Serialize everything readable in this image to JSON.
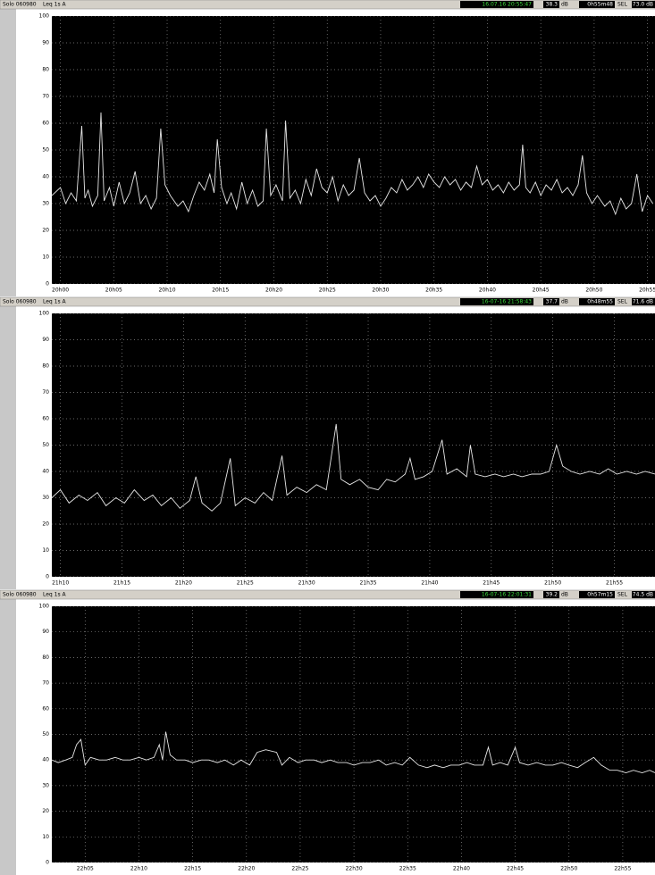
{
  "chart_data": [
    {
      "type": "line",
      "title": "Solo 060980",
      "subtitle": "Leq 1s A",
      "readout": {
        "time": "16.07.16 20:55:47",
        "level": "38.3",
        "unit": "dB",
        "duration": "0h55m48",
        "sel_label": "SEL",
        "sel": "73.0 dB"
      },
      "color": "#e6e6e6",
      "grid": true,
      "xlim": [
        -0.8,
        55.7
      ],
      "ylim": [
        0,
        100
      ],
      "yticks": [
        0,
        10,
        20,
        30,
        40,
        50,
        60,
        70,
        80,
        90,
        100
      ],
      "xticks": [
        {
          "value": 0,
          "label": "20h00"
        },
        {
          "value": 5,
          "label": "20h05"
        },
        {
          "value": 10,
          "label": "20h10"
        },
        {
          "value": 15,
          "label": "20h15"
        },
        {
          "value": 20,
          "label": "20h20"
        },
        {
          "value": 25,
          "label": "20h25"
        },
        {
          "value": 30,
          "label": "20h30"
        },
        {
          "value": 35,
          "label": "20h35"
        },
        {
          "value": 40,
          "label": "20h40"
        },
        {
          "value": 45,
          "label": "20h45"
        },
        {
          "value": 50,
          "label": "20h50"
        },
        {
          "value": 55,
          "label": "20h55"
        }
      ],
      "x": [
        -0.8,
        0,
        0.5,
        1,
        1.5,
        2,
        2.3,
        2.6,
        3,
        3.5,
        3.8,
        4.1,
        4.6,
        5,
        5.5,
        6,
        6.5,
        7,
        7.5,
        8,
        8.5,
        9,
        9.4,
        9.8,
        10.3,
        11,
        11.5,
        12,
        12.5,
        13,
        13.5,
        14,
        14.4,
        14.7,
        15.1,
        15.6,
        16,
        16.5,
        17,
        17.5,
        18,
        18.5,
        19,
        19.3,
        19.7,
        20.2,
        20.8,
        21.1,
        21.5,
        22,
        22.5,
        23,
        23.5,
        24,
        24.5,
        25,
        25.5,
        26,
        26.5,
        27,
        27.5,
        28,
        28.5,
        29,
        29.5,
        30,
        30.5,
        31,
        31.5,
        32,
        32.5,
        33,
        33.5,
        34,
        34.5,
        35,
        35.5,
        36,
        36.5,
        37,
        37.5,
        38,
        38.5,
        39,
        39.5,
        40,
        40.5,
        41,
        41.5,
        42,
        42.5,
        43,
        43.3,
        43.6,
        44,
        44.5,
        45,
        45.5,
        46,
        46.5,
        47,
        47.5,
        48,
        48.5,
        48.9,
        49.3,
        49.8,
        50.3,
        51,
        51.5,
        52,
        52.5,
        53,
        53.5,
        54,
        54.5,
        55,
        55.5
      ],
      "values": [
        33,
        36,
        30,
        34,
        31,
        59,
        32,
        35,
        29,
        33,
        64,
        31,
        36,
        29,
        38,
        30,
        34,
        42,
        30,
        33,
        28,
        32,
        58,
        37,
        33,
        29,
        31,
        27,
        33,
        38,
        35,
        41,
        34,
        54,
        36,
        30,
        34,
        28,
        38,
        30,
        35,
        29,
        31,
        58,
        33,
        37,
        31,
        61,
        32,
        35,
        30,
        39,
        33,
        43,
        36,
        34,
        40,
        31,
        37,
        33,
        35,
        47,
        34,
        31,
        33,
        29,
        32,
        36,
        34,
        39,
        35,
        37,
        40,
        36,
        41,
        38,
        36,
        40,
        37,
        39,
        35,
        38,
        36,
        44,
        37,
        39,
        35,
        37,
        34,
        38,
        35,
        37,
        52,
        36,
        34,
        38,
        33,
        37,
        35,
        39,
        34,
        36,
        33,
        37,
        48,
        34,
        30,
        33,
        29,
        31,
        26,
        32,
        28,
        30,
        41,
        27,
        33,
        30
      ]
    },
    {
      "type": "line",
      "title": "Solo 060980",
      "subtitle": "Leq 1s A",
      "readout": {
        "time": "16-07-16 21:58:43",
        "level": "37.7",
        "unit": "dB",
        "duration": "0h48m55",
        "sel_label": "SEL",
        "sel": "71.6 dB"
      },
      "color": "#e6e6e6",
      "grid": true,
      "xlim": [
        -0.7,
        48.3
      ],
      "ylim": [
        0,
        100
      ],
      "yticks": [
        0,
        10,
        20,
        30,
        40,
        50,
        60,
        70,
        80,
        90,
        100
      ],
      "xticks": [
        {
          "value": 0,
          "label": "21h10"
        },
        {
          "value": 5,
          "label": "21h15"
        },
        {
          "value": 10,
          "label": "21h20"
        },
        {
          "value": 15,
          "label": "21h25"
        },
        {
          "value": 20,
          "label": "21h30"
        },
        {
          "value": 25,
          "label": "21h35"
        },
        {
          "value": 30,
          "label": "21h40"
        },
        {
          "value": 35,
          "label": "21h45"
        },
        {
          "value": 40,
          "label": "21h50"
        },
        {
          "value": 45,
          "label": "21h55"
        }
      ],
      "x": [
        -0.7,
        0,
        0.7,
        1.5,
        2.2,
        3,
        3.7,
        4.5,
        5.2,
        6,
        6.8,
        7.5,
        8.2,
        9,
        9.7,
        10.5,
        11,
        11.5,
        12.3,
        13,
        13.8,
        14.2,
        15,
        15.8,
        16.5,
        17.2,
        18,
        18.4,
        19.2,
        20,
        20.8,
        21.6,
        22.4,
        22.8,
        23.5,
        24.3,
        25,
        25.8,
        26.5,
        27.2,
        28,
        28.4,
        28.8,
        29.5,
        30.2,
        31,
        31.4,
        32.2,
        33,
        33.3,
        33.7,
        34.5,
        35.3,
        36,
        36.8,
        37.5,
        38.3,
        39,
        39.7,
        40.3,
        40.8,
        41.5,
        42.2,
        43,
        43.8,
        44.5,
        45.2,
        46,
        46.8,
        47.5,
        48.3
      ],
      "values": [
        30,
        33,
        28,
        31,
        29,
        32,
        27,
        30,
        28,
        33,
        29,
        31,
        27,
        30,
        26,
        29,
        38,
        28,
        25,
        28,
        45,
        27,
        30,
        28,
        32,
        29,
        46,
        31,
        34,
        32,
        35,
        33,
        58,
        37,
        35,
        37,
        34,
        33,
        37,
        36,
        39,
        45,
        37,
        38,
        40,
        52,
        39,
        41,
        38,
        50,
        39,
        38,
        39,
        38,
        39,
        38,
        39,
        39,
        40,
        50,
        42,
        40,
        39,
        40,
        39,
        41,
        39,
        40,
        39,
        40,
        39
      ]
    },
    {
      "type": "line",
      "title": "Solo 060980",
      "subtitle": "Leq 1s A",
      "readout": {
        "time": "16-07-16 22:01:31",
        "level": "39.2",
        "unit": "dB",
        "duration": "0h57m15",
        "sel_label": "SEL",
        "sel": "74.5 dB"
      },
      "color": "#e6e6e6",
      "grid": true,
      "xlim": [
        -3.1,
        53
      ],
      "ylim": [
        0,
        100
      ],
      "yticks": [
        0,
        10,
        20,
        30,
        40,
        50,
        60,
        70,
        80,
        90,
        100
      ],
      "xticks": [
        {
          "value": 0,
          "label": "22h05"
        },
        {
          "value": 5,
          "label": "22h10"
        },
        {
          "value": 10,
          "label": "22h15"
        },
        {
          "value": 15,
          "label": "22h20"
        },
        {
          "value": 20,
          "label": "22h25"
        },
        {
          "value": 25,
          "label": "22h30"
        },
        {
          "value": 30,
          "label": "22h35"
        },
        {
          "value": 35,
          "label": "22h40"
        },
        {
          "value": 40,
          "label": "22h45"
        },
        {
          "value": 45,
          "label": "22h50"
        },
        {
          "value": 50,
          "label": "22h55"
        }
      ],
      "x": [
        -3.1,
        -2.5,
        -1.8,
        -1.2,
        -0.8,
        -0.4,
        0,
        0.5,
        1.3,
        2,
        2.8,
        3.5,
        4.2,
        5,
        5.7,
        6.4,
        6.9,
        7.2,
        7.5,
        7.9,
        8.5,
        9.3,
        10,
        10.8,
        11.5,
        12.3,
        13,
        13.8,
        14.5,
        15.3,
        16,
        16.8,
        17.8,
        18.3,
        19,
        19.8,
        20.5,
        21.3,
        22,
        22.8,
        23.5,
        24.3,
        25,
        25.8,
        26.5,
        27.3,
        28,
        28.8,
        29.5,
        30.2,
        31,
        31.8,
        32.5,
        33.3,
        34,
        34.8,
        35.5,
        36.2,
        37,
        37.5,
        37.9,
        38.6,
        39.3,
        40,
        40.4,
        41.2,
        42,
        42.8,
        43.5,
        44.3,
        45,
        45.8,
        46.5,
        47.3,
        48,
        48.8,
        49.5,
        50.3,
        51,
        51.8,
        52.5,
        53
      ],
      "values": [
        40,
        39,
        40,
        41,
        46,
        48,
        38,
        41,
        40,
        40,
        41,
        40,
        40,
        41,
        40,
        41,
        46,
        40,
        51,
        42,
        40,
        40,
        39,
        40,
        40,
        39,
        40,
        38,
        40,
        38,
        43,
        44,
        43,
        38,
        41,
        39,
        40,
        40,
        39,
        40,
        39,
        39,
        38,
        39,
        39,
        40,
        38,
        39,
        38,
        41,
        38,
        37,
        38,
        37,
        38,
        38,
        39,
        38,
        38,
        45,
        38,
        39,
        38,
        45,
        39,
        38,
        39,
        38,
        38,
        39,
        38,
        37,
        39,
        41,
        38,
        36,
        36,
        35,
        36,
        35,
        36,
        35
      ]
    }
  ]
}
